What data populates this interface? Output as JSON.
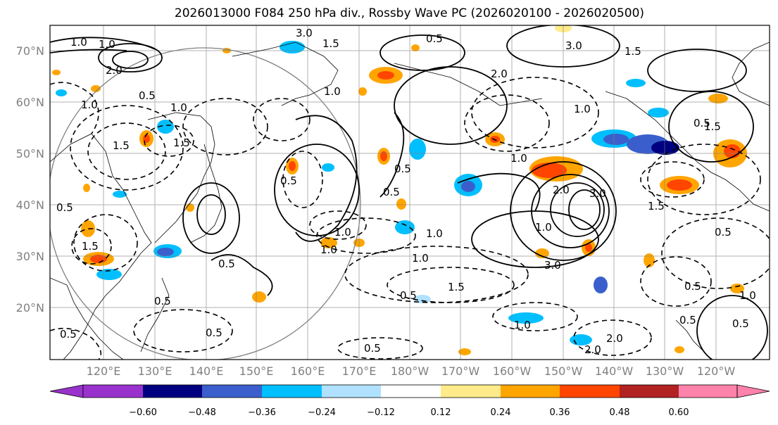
{
  "title": "2026013000 F084 250 hPa div., Rossby Wave PC (2026020100 - 2026020500)",
  "lat_labels": [
    "70°N",
    "60°N",
    "50°N",
    "40°N",
    "30°N",
    "20°N"
  ],
  "lon_labels": [
    "120°E",
    "130°E",
    "140°E",
    "150°E",
    "160°E",
    "170°E",
    "180°W",
    "170°W",
    "160°W",
    "150°W",
    "140°W",
    "130°W",
    "120°W"
  ],
  "colorbar": {
    "ticks": [
      "−0.60",
      "−0.48",
      "−0.36",
      "−0.24",
      "−0.12",
      "0.12",
      "0.24",
      "0.36",
      "0.48",
      "0.60"
    ],
    "colors": [
      "#9932cc",
      "#000080",
      "#3a5fcd",
      "#00bfff",
      "#b0e2ff",
      "#ffffff",
      "#ffeb8a",
      "#ffa500",
      "#ff4500",
      "#b22222",
      "#ff82ab"
    ]
  },
  "contour_labels": [
    "3.0",
    "1.5",
    "3.0",
    "2.0",
    "0.5",
    "1.0",
    "1.5",
    "0.5",
    "0.5",
    "1.0",
    "1.0",
    "1.5",
    "0.5",
    "1.0",
    "2.0",
    "0.5",
    "1.5",
    "0.5",
    "1.0",
    "0.5",
    "1.0",
    "0.5",
    "1.0",
    "1.5",
    "1.0",
    "2.0",
    "1.0",
    "1.0",
    "0.5",
    "0.5",
    "1.5",
    "1.0",
    "2.0",
    "0.5",
    "3.0",
    "3.0",
    "1.5",
    "1.0",
    "1.5",
    "0.5",
    "0.5",
    "0.5",
    "0.5",
    "1.0",
    "0.5",
    "0.5",
    "1.0",
    "2.0"
  ],
  "colors": {
    "land": "#000000",
    "grid": "#808080",
    "frame": "#000000"
  }
}
